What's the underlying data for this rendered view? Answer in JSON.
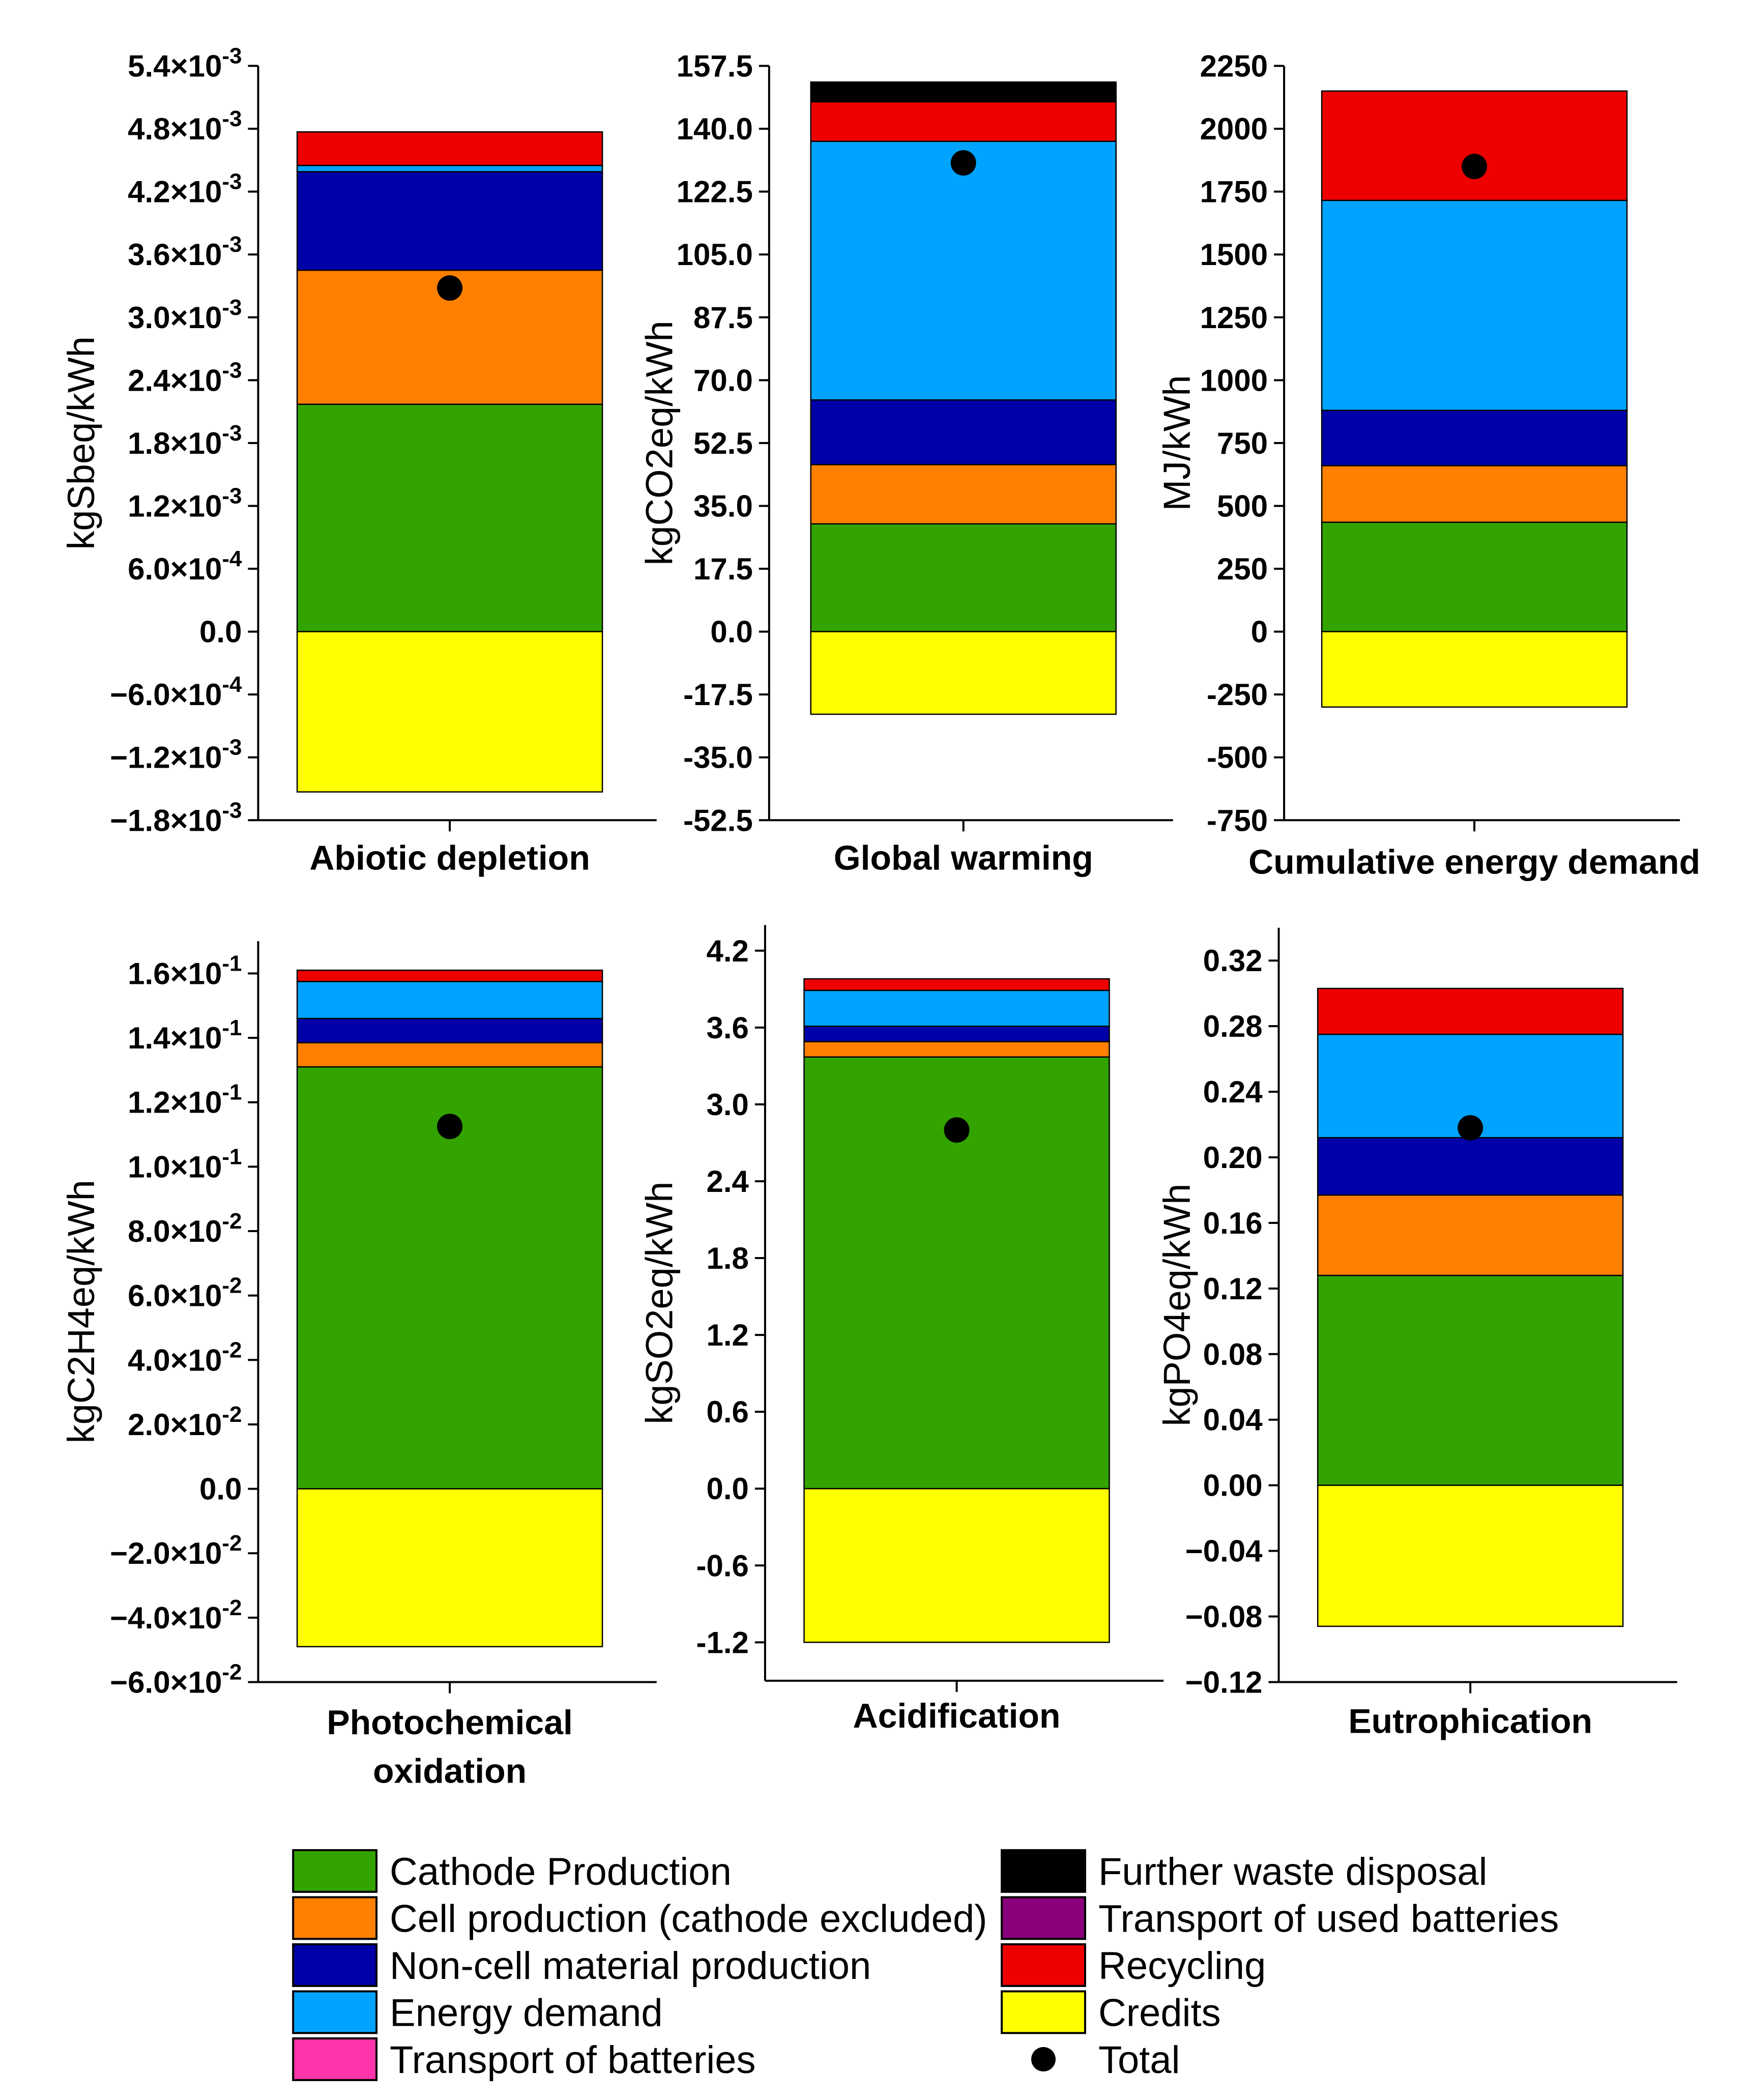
{
  "series_colors": {
    "Cathode Production": "#33a300",
    "Cell production (cathode excluded)": "#ff8000",
    "Non-cell material production": "#0000a8",
    "Energy demand": "#00a3ff",
    "Transport of batteries": "#ff33aa",
    "Further waste disposal": "#000000",
    "Transport of used batteries": "#8a007a",
    "Recycling": "#ee0000",
    "Credits": "#ffff00",
    "Total": "#000000"
  },
  "legend": {
    "items": [
      {
        "name": "Cathode Production",
        "marker": "box"
      },
      {
        "name": "Cell production (cathode excluded)",
        "marker": "box"
      },
      {
        "name": "Non-cell material production",
        "marker": "box"
      },
      {
        "name": "Energy demand",
        "marker": "box"
      },
      {
        "name": "Transport of batteries",
        "marker": "box"
      },
      {
        "name": "Further waste disposal",
        "marker": "box"
      },
      {
        "name": "Transport of used batteries",
        "marker": "box"
      },
      {
        "name": "Recycling",
        "marker": "box"
      },
      {
        "name": "Credits",
        "marker": "box"
      },
      {
        "name": "Total",
        "marker": "dot"
      }
    ]
  },
  "chart_data": [
    {
      "type": "bar",
      "stacked": true,
      "category": "Abiotic depletion",
      "ylabel": "kgSbeq/kWh",
      "ylim": [
        -0.0018,
        0.0054
      ],
      "ticks": [
        {
          "value": 0.0054,
          "label": "5.4×10",
          "exp": "-3"
        },
        {
          "value": 0.0048,
          "label": "4.8×10",
          "exp": "-3"
        },
        {
          "value": 0.0042,
          "label": "4.2×10",
          "exp": "-3"
        },
        {
          "value": 0.0036,
          "label": "3.6×10",
          "exp": "-3"
        },
        {
          "value": 0.003,
          "label": "3.0×10",
          "exp": "-3"
        },
        {
          "value": 0.0024,
          "label": "2.4×10",
          "exp": "-3"
        },
        {
          "value": 0.0018,
          "label": "1.8×10",
          "exp": "-3"
        },
        {
          "value": 0.0012,
          "label": "1.2×10",
          "exp": "-3"
        },
        {
          "value": 0.0006,
          "label": "6.0×10",
          "exp": "-4"
        },
        {
          "value": 0.0,
          "label": "0.0",
          "exp": ""
        },
        {
          "value": -0.0006,
          "label": "−6.0×10",
          "exp": "-4"
        },
        {
          "value": -0.0012,
          "label": "−1.2×10",
          "exp": "-3"
        },
        {
          "value": -0.0018,
          "label": "−1.8×10",
          "exp": "-3"
        }
      ],
      "positive_stack": [
        {
          "series": "Cathode Production",
          "value": 0.00217
        },
        {
          "series": "Cell production (cathode excluded)",
          "value": 0.00128
        },
        {
          "series": "Non-cell material production",
          "value": 0.00094
        },
        {
          "series": "Energy demand",
          "value": 6e-05
        },
        {
          "series": "Recycling",
          "value": 0.00032
        }
      ],
      "negative_stack": [
        {
          "series": "Credits",
          "value": -0.00153
        }
      ],
      "total": 0.00328
    },
    {
      "type": "bar",
      "stacked": true,
      "category": "Global warming",
      "ylabel": "kgCO2eq/kWh",
      "ylim": [
        -52.5,
        157.5
      ],
      "ticks": [
        {
          "value": 157.5,
          "label": "157.5",
          "exp": ""
        },
        {
          "value": 140.0,
          "label": "140.0",
          "exp": ""
        },
        {
          "value": 122.5,
          "label": "122.5",
          "exp": ""
        },
        {
          "value": 105.0,
          "label": "105.0",
          "exp": ""
        },
        {
          "value": 87.5,
          "label": "87.5",
          "exp": ""
        },
        {
          "value": 70.0,
          "label": "70.0",
          "exp": ""
        },
        {
          "value": 52.5,
          "label": "52.5",
          "exp": ""
        },
        {
          "value": 35.0,
          "label": "35.0",
          "exp": ""
        },
        {
          "value": 17.5,
          "label": "17.5",
          "exp": ""
        },
        {
          "value": 0.0,
          "label": "0.0",
          "exp": ""
        },
        {
          "value": -17.5,
          "label": "-17.5",
          "exp": ""
        },
        {
          "value": -35.0,
          "label": "-35.0",
          "exp": ""
        },
        {
          "value": -52.5,
          "label": "-52.5",
          "exp": ""
        }
      ],
      "positive_stack": [
        {
          "series": "Cathode Production",
          "value": 30.0
        },
        {
          "series": "Cell production (cathode excluded)",
          "value": 16.5
        },
        {
          "series": "Non-cell material production",
          "value": 18.0
        },
        {
          "series": "Energy demand",
          "value": 72.0
        },
        {
          "series": "Recycling",
          "value": 11.0
        },
        {
          "series": "Further waste disposal",
          "value": 5.5
        }
      ],
      "negative_stack": [
        {
          "series": "Credits",
          "value": -23.0
        }
      ],
      "total": 130.5
    },
    {
      "type": "bar",
      "stacked": true,
      "category": "Cumulative energy demand",
      "ylabel": "MJ/kWh",
      "ylim": [
        -750,
        2250
      ],
      "ticks": [
        {
          "value": 2250,
          "label": "2250",
          "exp": ""
        },
        {
          "value": 2000,
          "label": "2000",
          "exp": ""
        },
        {
          "value": 1750,
          "label": "1750",
          "exp": ""
        },
        {
          "value": 1500,
          "label": "1500",
          "exp": ""
        },
        {
          "value": 1250,
          "label": "1250",
          "exp": ""
        },
        {
          "value": 1000,
          "label": "1000",
          "exp": ""
        },
        {
          "value": 750,
          "label": "750",
          "exp": ""
        },
        {
          "value": 500,
          "label": "500",
          "exp": ""
        },
        {
          "value": 250,
          "label": "250",
          "exp": ""
        },
        {
          "value": 0,
          "label": "0",
          "exp": ""
        },
        {
          "value": -250,
          "label": "-250",
          "exp": ""
        },
        {
          "value": -500,
          "label": "-500",
          "exp": ""
        },
        {
          "value": -750,
          "label": "-750",
          "exp": ""
        }
      ],
      "positive_stack": [
        {
          "series": "Cathode Production",
          "value": 435
        },
        {
          "series": "Cell production (cathode excluded)",
          "value": 225
        },
        {
          "series": "Non-cell material production",
          "value": 220
        },
        {
          "series": "Energy demand",
          "value": 835
        },
        {
          "series": "Recycling",
          "value": 435
        }
      ],
      "negative_stack": [
        {
          "series": "Credits",
          "value": -300
        }
      ],
      "total": 1850
    },
    {
      "type": "bar",
      "stacked": true,
      "category": "Photochemical oxidation",
      "ylabel": "kgC2H4eq/kWh",
      "ylim": [
        -0.06,
        0.17
      ],
      "ticks": [
        {
          "value": 0.16,
          "label": "1.6×10",
          "exp": "-1"
        },
        {
          "value": 0.14,
          "label": "1.4×10",
          "exp": "-1"
        },
        {
          "value": 0.12,
          "label": "1.2×10",
          "exp": "-1"
        },
        {
          "value": 0.1,
          "label": "1.0×10",
          "exp": "-1"
        },
        {
          "value": 0.08,
          "label": "8.0×10",
          "exp": "-2"
        },
        {
          "value": 0.06,
          "label": "6.0×10",
          "exp": "-2"
        },
        {
          "value": 0.04,
          "label": "4.0×10",
          "exp": "-2"
        },
        {
          "value": 0.02,
          "label": "2.0×10",
          "exp": "-2"
        },
        {
          "value": 0.0,
          "label": "0.0",
          "exp": ""
        },
        {
          "value": -0.02,
          "label": "−2.0×10",
          "exp": "-2"
        },
        {
          "value": -0.04,
          "label": "−4.0×10",
          "exp": "-2"
        },
        {
          "value": -0.06,
          "label": "−6.0×10",
          "exp": "-2"
        }
      ],
      "positive_stack": [
        {
          "series": "Cathode Production",
          "value": 0.131
        },
        {
          "series": "Cell production (cathode excluded)",
          "value": 0.0075
        },
        {
          "series": "Non-cell material production",
          "value": 0.0075
        },
        {
          "series": "Energy demand",
          "value": 0.0115
        },
        {
          "series": "Recycling",
          "value": 0.0035
        }
      ],
      "negative_stack": [
        {
          "series": "Credits",
          "value": -0.049
        }
      ],
      "total": 0.1125
    },
    {
      "type": "bar",
      "stacked": true,
      "category": "Acidification",
      "ylabel": "kgSO2eq/kWh",
      "ylim": [
        -1.5,
        4.4
      ],
      "ticks": [
        {
          "value": 4.2,
          "label": "4.2",
          "exp": ""
        },
        {
          "value": 3.6,
          "label": "3.6",
          "exp": ""
        },
        {
          "value": 3.0,
          "label": "3.0",
          "exp": ""
        },
        {
          "value": 2.4,
          "label": "2.4",
          "exp": ""
        },
        {
          "value": 1.8,
          "label": "1.8",
          "exp": ""
        },
        {
          "value": 1.2,
          "label": "1.2",
          "exp": ""
        },
        {
          "value": 0.6,
          "label": "0.6",
          "exp": ""
        },
        {
          "value": 0.0,
          "label": "0.0",
          "exp": ""
        },
        {
          "value": -0.6,
          "label": "-0.6",
          "exp": ""
        },
        {
          "value": -1.2,
          "label": "-1.2",
          "exp": ""
        }
      ],
      "positive_stack": [
        {
          "series": "Cathode Production",
          "value": 3.37
        },
        {
          "series": "Cell production (cathode excluded)",
          "value": 0.12
        },
        {
          "series": "Non-cell material production",
          "value": 0.12
        },
        {
          "series": "Energy demand",
          "value": 0.28
        },
        {
          "series": "Recycling",
          "value": 0.09
        }
      ],
      "negative_stack": [
        {
          "series": "Credits",
          "value": -1.2
        }
      ],
      "total": 2.8
    },
    {
      "type": "bar",
      "stacked": true,
      "category": "Eutrophication",
      "ylabel": "kgPO4eq/kWh",
      "ylim": [
        -0.12,
        0.34
      ],
      "ticks": [
        {
          "value": 0.32,
          "label": "0.32",
          "exp": ""
        },
        {
          "value": 0.28,
          "label": "0.28",
          "exp": ""
        },
        {
          "value": 0.24,
          "label": "0.24",
          "exp": ""
        },
        {
          "value": 0.2,
          "label": "0.20",
          "exp": ""
        },
        {
          "value": 0.16,
          "label": "0.16",
          "exp": ""
        },
        {
          "value": 0.12,
          "label": "0.12",
          "exp": ""
        },
        {
          "value": 0.08,
          "label": "0.08",
          "exp": ""
        },
        {
          "value": 0.04,
          "label": "0.04",
          "exp": ""
        },
        {
          "value": 0.0,
          "label": "0.00",
          "exp": ""
        },
        {
          "value": -0.04,
          "label": "−0.04",
          "exp": ""
        },
        {
          "value": -0.08,
          "label": "−0.08",
          "exp": ""
        },
        {
          "value": -0.12,
          "label": "−0.12",
          "exp": ""
        }
      ],
      "positive_stack": [
        {
          "series": "Cathode Production",
          "value": 0.128
        },
        {
          "series": "Cell production (cathode excluded)",
          "value": 0.049
        },
        {
          "series": "Non-cell material production",
          "value": 0.035
        },
        {
          "series": "Energy demand",
          "value": 0.063
        },
        {
          "series": "Recycling",
          "value": 0.028
        }
      ],
      "negative_stack": [
        {
          "series": "Credits",
          "value": -0.086
        }
      ],
      "total": 0.218
    }
  ]
}
